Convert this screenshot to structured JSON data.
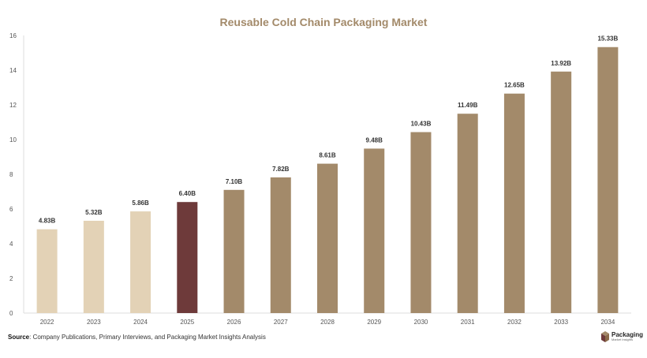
{
  "colors": {
    "title": "#a38a6a",
    "bar_past": "#e3d2b6",
    "bar_current": "#6e3a3a",
    "bar_forecast": "#a38a6a",
    "axis": "#dddddd"
  },
  "chart_data": {
    "type": "bar",
    "title": "Reusable Cold Chain Packaging Market",
    "xlabel": "",
    "ylabel": "",
    "ylim": [
      0,
      16
    ],
    "yticks": [
      0,
      2,
      4,
      6,
      8,
      10,
      12,
      14,
      16
    ],
    "grid": false,
    "categories": [
      "2022",
      "2023",
      "2024",
      "2025",
      "2026",
      "2027",
      "2028",
      "2029",
      "2030",
      "2031",
      "2032",
      "2033",
      "2034"
    ],
    "values": [
      4.83,
      5.32,
      5.86,
      6.4,
      7.1,
      7.82,
      8.61,
      9.48,
      10.43,
      11.49,
      12.65,
      13.92,
      15.33
    ],
    "data_labels": [
      "4.83B",
      "5.32B",
      "5.86B",
      "6.40B",
      "7.10B",
      "7.82B",
      "8.61B",
      "9.48B",
      "10.43B",
      "11.49B",
      "12.65B",
      "13.92B",
      "15.33B"
    ],
    "bar_groups": [
      "past",
      "past",
      "past",
      "current",
      "forecast",
      "forecast",
      "forecast",
      "forecast",
      "forecast",
      "forecast",
      "forecast",
      "forecast",
      "forecast"
    ]
  },
  "footer": {
    "source_label": "Source",
    "source_text": ": Company Publications, Primary Interviews, and Packaging Market Insights Analysis"
  },
  "logo": {
    "name": "Packaging",
    "sub": "Market Insights"
  }
}
